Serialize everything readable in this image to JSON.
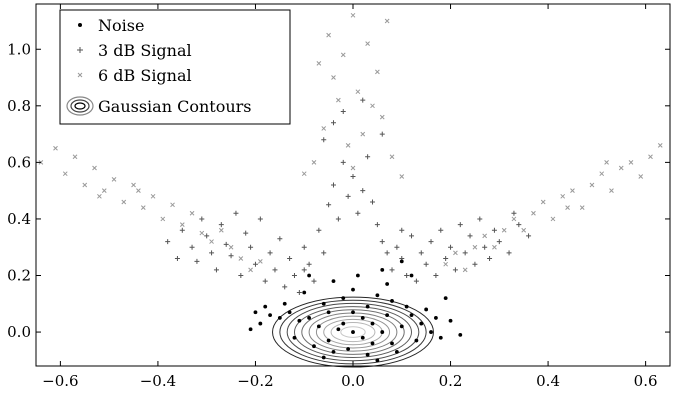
{
  "chart_data": {
    "type": "scatter",
    "xlim": [
      -0.65,
      0.65
    ],
    "ylim": [
      -0.12,
      1.16
    ],
    "x_ticks": [
      -0.6,
      -0.4,
      -0.2,
      0.0,
      0.2,
      0.4,
      0.6
    ],
    "x_tick_labels": [
      "−0.6",
      "−0.4",
      "−0.2",
      "0.0",
      "0.2",
      "0.4",
      "0.6"
    ],
    "y_ticks": [
      0.0,
      0.2,
      0.4,
      0.6,
      0.8,
      1.0
    ],
    "y_tick_labels": [
      "0.0",
      "0.2",
      "0.4",
      "0.6",
      "0.8",
      "1.0"
    ],
    "grid": false,
    "legend_position": "top-left",
    "legend": [
      "Noise",
      "3 dB Signal",
      "6 dB Signal",
      "Gaussian Contours"
    ],
    "colors": {
      "noise": "#000000",
      "signal_3db": "#555555",
      "signal_6db": "#999999",
      "contours": "#444444"
    },
    "series": [
      {
        "name": "Noise",
        "marker": "dot",
        "points": [
          [
            0.0,
            0.0
          ],
          [
            0.02,
            -0.02
          ],
          [
            -0.03,
            0.01
          ],
          [
            0.04,
            0.03
          ],
          [
            -0.05,
            -0.03
          ],
          [
            0.06,
            0.0
          ],
          [
            -0.07,
            0.02
          ],
          [
            0.08,
            -0.04
          ],
          [
            -0.09,
            0.05
          ],
          [
            0.1,
            0.02
          ],
          [
            -0.11,
            0.04
          ],
          [
            0.12,
            0.06
          ],
          [
            -0.13,
            0.07
          ],
          [
            0.14,
            0.03
          ],
          [
            -0.15,
            0.05
          ],
          [
            0.16,
            0.0
          ],
          [
            -0.17,
            0.06
          ],
          [
            0.18,
            -0.02
          ],
          [
            -0.19,
            0.03
          ],
          [
            0.2,
            0.04
          ],
          [
            -0.21,
            0.01
          ],
          [
            0.03,
            0.09
          ],
          [
            -0.02,
            0.12
          ],
          [
            0.0,
            0.15
          ],
          [
            0.05,
            0.13
          ],
          [
            -0.06,
            0.1
          ],
          [
            0.08,
            0.11
          ],
          [
            -0.1,
            0.14
          ],
          [
            0.11,
            0.09
          ],
          [
            0.01,
            0.2
          ],
          [
            -0.04,
            0.18
          ],
          [
            0.07,
            0.17
          ],
          [
            0.02,
            0.05
          ],
          [
            -0.01,
            -0.06
          ],
          [
            0.03,
            -0.08
          ],
          [
            -0.04,
            -0.07
          ],
          [
            0.05,
            -0.1
          ],
          [
            -0.06,
            -0.09
          ],
          [
            0.09,
            -0.07
          ],
          [
            -0.08,
            -0.05
          ],
          [
            0.13,
            -0.03
          ],
          [
            -0.12,
            -0.02
          ],
          [
            0.15,
            0.08
          ],
          [
            -0.14,
            0.1
          ],
          [
            0.06,
            0.22
          ],
          [
            0.1,
            0.25
          ],
          [
            0.12,
            0.2
          ],
          [
            -0.09,
            0.2
          ],
          [
            0.17,
            0.05
          ],
          [
            -0.18,
            0.09
          ],
          [
            0.22,
            -0.01
          ],
          [
            -0.2,
            0.07
          ],
          [
            0.19,
            0.12
          ],
          [
            0.0,
            0.07
          ],
          [
            -0.02,
            0.03
          ],
          [
            0.04,
            -0.04
          ],
          [
            0.07,
            0.06
          ],
          [
            -0.05,
            0.07
          ]
        ]
      },
      {
        "name": "3 dB Signal",
        "marker": "plus",
        "points": [
          [
            -0.38,
            0.32
          ],
          [
            -0.35,
            0.36
          ],
          [
            -0.33,
            0.3
          ],
          [
            -0.32,
            0.25
          ],
          [
            -0.3,
            0.34
          ],
          [
            -0.29,
            0.28
          ],
          [
            -0.28,
            0.22
          ],
          [
            -0.27,
            0.38
          ],
          [
            -0.26,
            0.31
          ],
          [
            -0.25,
            0.27
          ],
          [
            -0.24,
            0.42
          ],
          [
            -0.23,
            0.2
          ],
          [
            -0.22,
            0.35
          ],
          [
            -0.21,
            0.3
          ],
          [
            -0.2,
            0.24
          ],
          [
            -0.19,
            0.4
          ],
          [
            -0.18,
            0.18
          ],
          [
            -0.17,
            0.28
          ],
          [
            -0.16,
            0.22
          ],
          [
            -0.15,
            0.33
          ],
          [
            -0.14,
            0.16
          ],
          [
            -0.13,
            0.26
          ],
          [
            -0.12,
            0.2
          ],
          [
            -0.11,
            0.14
          ],
          [
            -0.1,
            0.3
          ],
          [
            -0.09,
            0.24
          ],
          [
            -0.08,
            0.18
          ],
          [
            -0.07,
            0.36
          ],
          [
            -0.06,
            0.28
          ],
          [
            -0.05,
            0.45
          ],
          [
            -0.04,
            0.52
          ],
          [
            -0.03,
            0.4
          ],
          [
            -0.02,
            0.6
          ],
          [
            -0.01,
            0.48
          ],
          [
            0.0,
            0.55
          ],
          [
            0.01,
            0.42
          ],
          [
            0.02,
            0.5
          ],
          [
            0.03,
            0.62
          ],
          [
            0.04,
            0.46
          ],
          [
            0.05,
            0.38
          ],
          [
            0.06,
            0.32
          ],
          [
            0.07,
            0.28
          ],
          [
            0.08,
            0.22
          ],
          [
            0.09,
            0.3
          ],
          [
            0.1,
            0.26
          ],
          [
            0.11,
            0.2
          ],
          [
            0.12,
            0.34
          ],
          [
            0.13,
            0.18
          ],
          [
            0.14,
            0.28
          ],
          [
            0.15,
            0.24
          ],
          [
            0.16,
            0.32
          ],
          [
            0.17,
            0.2
          ],
          [
            0.18,
            0.36
          ],
          [
            0.19,
            0.26
          ],
          [
            0.2,
            0.3
          ],
          [
            0.21,
            0.22
          ],
          [
            0.22,
            0.38
          ],
          [
            0.23,
            0.28
          ],
          [
            0.24,
            0.34
          ],
          [
            0.25,
            0.24
          ],
          [
            0.26,
            0.4
          ],
          [
            0.27,
            0.3
          ],
          [
            0.28,
            0.26
          ],
          [
            0.29,
            0.36
          ],
          [
            0.3,
            0.32
          ],
          [
            0.32,
            0.28
          ],
          [
            0.34,
            0.38
          ],
          [
            0.36,
            0.34
          ],
          [
            -0.06,
            0.68
          ],
          [
            -0.04,
            0.74
          ],
          [
            0.06,
            0.7
          ],
          [
            -0.02,
            0.78
          ],
          [
            0.02,
            0.82
          ],
          [
            -0.36,
            0.26
          ],
          [
            -0.31,
            0.4
          ],
          [
            0.33,
            0.42
          ],
          [
            -0.1,
            0.22
          ],
          [
            0.1,
            0.36
          ]
        ]
      },
      {
        "name": "6 dB Signal",
        "marker": "cross",
        "points": [
          [
            -0.64,
            0.6
          ],
          [
            -0.61,
            0.65
          ],
          [
            -0.59,
            0.56
          ],
          [
            -0.57,
            0.62
          ],
          [
            -0.55,
            0.52
          ],
          [
            -0.53,
            0.58
          ],
          [
            -0.51,
            0.5
          ],
          [
            -0.49,
            0.54
          ],
          [
            -0.47,
            0.46
          ],
          [
            -0.45,
            0.52
          ],
          [
            -0.43,
            0.44
          ],
          [
            -0.41,
            0.48
          ],
          [
            -0.39,
            0.4
          ],
          [
            -0.37,
            0.45
          ],
          [
            -0.35,
            0.38
          ],
          [
            -0.33,
            0.42
          ],
          [
            -0.31,
            0.35
          ],
          [
            -0.29,
            0.32
          ],
          [
            -0.27,
            0.36
          ],
          [
            -0.25,
            0.3
          ],
          [
            -0.23,
            0.26
          ],
          [
            -0.21,
            0.22
          ],
          [
            -0.19,
            0.25
          ],
          [
            0.19,
            0.24
          ],
          [
            0.21,
            0.28
          ],
          [
            0.23,
            0.22
          ],
          [
            0.25,
            0.3
          ],
          [
            0.27,
            0.34
          ],
          [
            0.29,
            0.3
          ],
          [
            0.31,
            0.36
          ],
          [
            0.33,
            0.4
          ],
          [
            0.35,
            0.36
          ],
          [
            0.37,
            0.42
          ],
          [
            0.39,
            0.46
          ],
          [
            0.41,
            0.4
          ],
          [
            0.43,
            0.48
          ],
          [
            0.45,
            0.5
          ],
          [
            0.47,
            0.44
          ],
          [
            0.49,
            0.52
          ],
          [
            0.51,
            0.56
          ],
          [
            0.53,
            0.5
          ],
          [
            0.55,
            0.58
          ],
          [
            0.57,
            0.6
          ],
          [
            0.59,
            0.55
          ],
          [
            0.61,
            0.62
          ],
          [
            0.63,
            0.66
          ],
          [
            -0.05,
            1.05
          ],
          [
            -0.02,
            0.98
          ],
          [
            0.0,
            1.12
          ],
          [
            0.03,
            1.02
          ],
          [
            0.05,
            0.92
          ],
          [
            -0.04,
            0.9
          ],
          [
            0.01,
            0.85
          ],
          [
            0.04,
            0.8
          ],
          [
            -0.03,
            0.82
          ],
          [
            0.06,
            0.76
          ],
          [
            -0.06,
            0.72
          ],
          [
            0.02,
            0.7
          ],
          [
            -0.01,
            0.66
          ],
          [
            0.07,
            1.1
          ],
          [
            -0.07,
            0.95
          ],
          [
            0.08,
            0.62
          ],
          [
            -0.08,
            0.6
          ],
          [
            0.0,
            0.58
          ],
          [
            0.1,
            0.55
          ],
          [
            -0.1,
            0.56
          ],
          [
            -0.44,
            0.5
          ],
          [
            -0.52,
            0.48
          ],
          [
            0.44,
            0.44
          ],
          [
            0.52,
            0.6
          ]
        ]
      }
    ],
    "gaussian_contours": {
      "center": [
        0.0,
        0.0
      ],
      "sigma": [
        0.1,
        0.075
      ],
      "levels": [
        0.25,
        0.45,
        0.6,
        0.75,
        0.9,
        1.05,
        1.2,
        1.35,
        1.5,
        1.65
      ]
    }
  }
}
